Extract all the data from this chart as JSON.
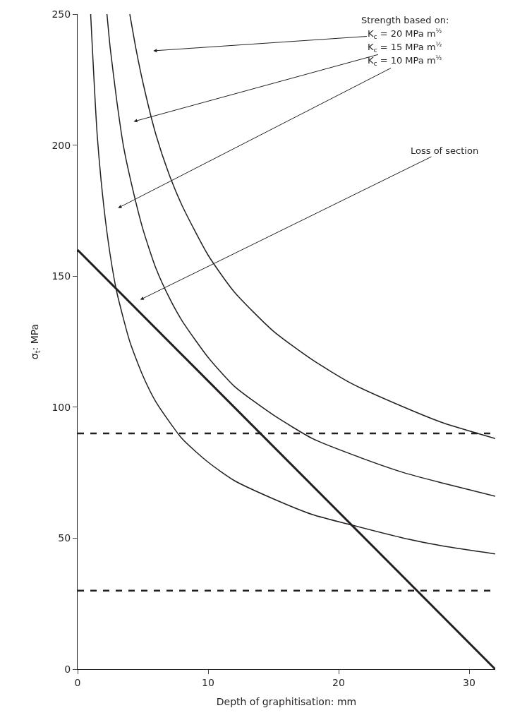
{
  "chart_data": {
    "type": "line",
    "xlabel": "Depth of graphitisation: mm",
    "ylabel": "σ$_{t}$: MPa",
    "xlim": [
      0,
      32
    ],
    "ylim": [
      0,
      250
    ],
    "xticks": [
      0,
      10,
      20,
      30
    ],
    "yticks": [
      0,
      50,
      100,
      150,
      200,
      250
    ],
    "marker": "none",
    "series": [
      {
        "color": "#231f20",
        "x": [
          1,
          1.5,
          2,
          2.5,
          3,
          4,
          5,
          6,
          8,
          10,
          12,
          15,
          18,
          21,
          25,
          28,
          32
        ],
        "values": [
          250,
          204,
          177,
          158,
          144,
          125,
          112,
          102,
          88,
          79,
          72,
          65,
          59,
          55,
          50,
          47,
          44
        ]
      },
      {
        "color": "#231f20",
        "x": [
          2.25,
          2.5,
          3,
          3.5,
          4,
          5,
          6,
          7,
          8,
          10,
          12,
          15,
          18,
          21,
          25,
          28,
          32
        ],
        "values": [
          250,
          237,
          217,
          200,
          188,
          168,
          153,
          142,
          133,
          119,
          108,
          97,
          88,
          82,
          75,
          71,
          66
        ]
      },
      {
        "color": "#231f20",
        "x": [
          4,
          4.5,
          5,
          6,
          7,
          8,
          10,
          12,
          15,
          18,
          21,
          25,
          28,
          32
        ],
        "values": [
          250,
          236,
          224,
          204,
          189,
          177,
          158,
          144,
          129,
          118,
          109,
          100,
          94,
          88
        ]
      },
      {
        "color": "#231f20",
        "x": [
          0,
          32
        ],
        "values": [
          160,
          0
        ]
      }
    ],
    "ref_lines": [
      {
        "axis": "y",
        "value": 90,
        "color": "#231f20",
        "line_style": "dashed"
      },
      {
        "axis": "y",
        "value": 30,
        "color": "#231f20",
        "line_style": "dashed"
      }
    ],
    "annotations": [
      "Strength based on:",
      "K$_{c}$ = 20 MPa m$^{½}$",
      "K$_{c}$ = 15 MPa m$^{½}$",
      "K$_{c}$ = 10 MPa m$^{½}$",
      "Loss of section"
    ]
  }
}
